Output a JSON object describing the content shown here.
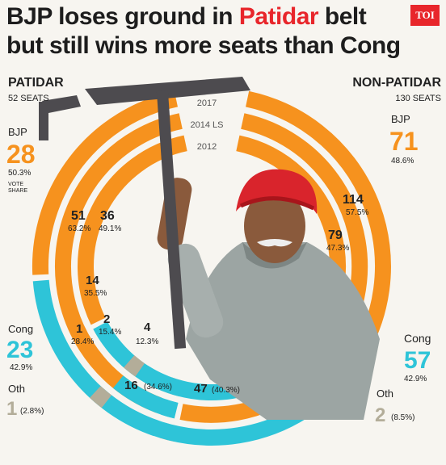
{
  "title": {
    "line1_pre": "BJP loses ground in ",
    "line1_hl": "Patidar",
    "line1_post": " belt",
    "line2": "but still wins more seats than Cong"
  },
  "logo": "TOI",
  "colors": {
    "bjp": "#f6921e",
    "cong": "#2ec4d8",
    "oth": "#b3ad99"
  },
  "year_labels": [
    "2017",
    "2014 LS",
    "2012"
  ],
  "patidar": {
    "header": "PATIDAR",
    "seats": "52 SEATS",
    "bjp_label": "BJP",
    "bjp_seats": "28",
    "bjp_share": "50.3%",
    "vote_share_l1": "VOTE",
    "vote_share_l2": "SHARE",
    "cong_label": "Cong",
    "cong_seats": "23",
    "cong_share": "42.9%",
    "oth_label": "Oth",
    "oth_seats": "1",
    "oth_share": "(2.8%)",
    "ring2014_bjp": "51",
    "ring2014_bjp_share": "63.2%",
    "ring2014_cong": "1",
    "ring2014_cong_share": "28.4%",
    "ring2012_bjp": "36",
    "ring2012_bjp_share": "49.1%",
    "ring2012_cong": "14",
    "ring2012_cong_share": "35.5%",
    "ring2012_oth": "2",
    "ring2012_oth_share": "15.4%"
  },
  "nonpatidar": {
    "header": "NON-PATIDAR",
    "seats": "130 SEATS",
    "bjp_label": "BJP",
    "bjp_seats": "71",
    "bjp_share": "48.6%",
    "cong_label": "Cong",
    "cong_seats": "57",
    "cong_share": "42.9%",
    "oth_label": "Oth",
    "oth_seats": "2",
    "oth_share": "(8.5%)",
    "ring2014_bjp": "114",
    "ring2014_bjp_share": "57.5%",
    "ring2012_bjp": "79",
    "ring2012_bjp_share": "47.3%",
    "ring2012_oth": "4",
    "ring2012_oth_share": "12.3%",
    "ring2012_cong_a": "16",
    "ring2012_cong_a_share": "(34.6%)",
    "ring2012_cong_b": "47",
    "ring2012_cong_b_share": "(40.3%)"
  },
  "chart_data": {
    "type": "radial-bar",
    "title": "BJP loses ground in Patidar belt but still wins more seats than Cong",
    "groups": [
      {
        "name": "PATIDAR",
        "seats": 52,
        "elections": [
          {
            "year": "2017",
            "BJP": {
              "seats": 28,
              "vote_share": 50.3
            },
            "Cong": {
              "seats": 23,
              "vote_share": 42.9
            },
            "Oth": {
              "seats": 1,
              "vote_share": 2.8
            }
          },
          {
            "year": "2014 LS",
            "BJP": {
              "seats": 51,
              "vote_share": 63.2
            },
            "Cong": {
              "seats": 1,
              "vote_share": 28.4
            }
          },
          {
            "year": "2012",
            "BJP": {
              "seats": 36,
              "vote_share": 49.1
            },
            "Cong": {
              "seats": 14,
              "vote_share": 35.5
            },
            "Oth": {
              "seats": 2,
              "vote_share": 15.4
            }
          }
        ]
      },
      {
        "name": "NON-PATIDAR",
        "seats": 130,
        "elections": [
          {
            "year": "2017",
            "BJP": {
              "seats": 71,
              "vote_share": 48.6
            },
            "Cong": {
              "seats": 57,
              "vote_share": 42.9
            },
            "Oth": {
              "seats": 2,
              "vote_share": 8.5
            }
          },
          {
            "year": "2014 LS",
            "BJP": {
              "seats": 114,
              "vote_share": 57.5
            },
            "Cong": {
              "seats": 16,
              "vote_share": 34.6
            }
          },
          {
            "year": "2012",
            "BJP": {
              "seats": 79,
              "vote_share": 47.3
            },
            "Cong": {
              "seats": 47,
              "vote_share": 40.3
            },
            "Oth": {
              "seats": 4,
              "vote_share": 12.3
            }
          }
        ]
      }
    ]
  }
}
